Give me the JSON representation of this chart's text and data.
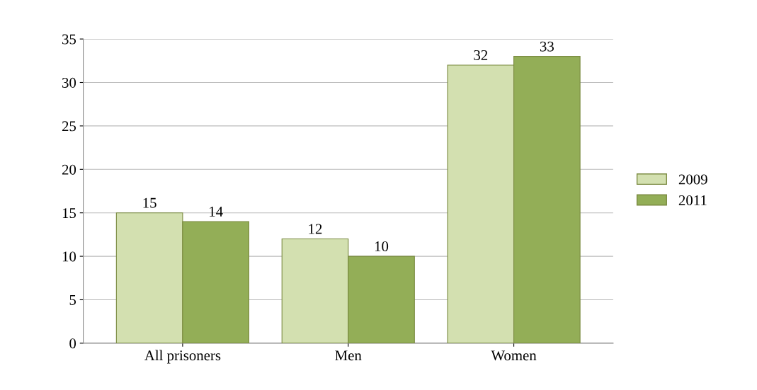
{
  "chart_data": {
    "type": "bar",
    "categories": [
      "All prisoners",
      "Men",
      "Women"
    ],
    "series": [
      {
        "name": "2009",
        "color": "#d3e0b0",
        "values": [
          15,
          12,
          32
        ]
      },
      {
        "name": "2011",
        "color": "#93ae57",
        "values": [
          14,
          10,
          33
        ]
      }
    ],
    "ylim": [
      0,
      35
    ],
    "yticks": [
      0,
      5,
      10,
      15,
      20,
      25,
      30,
      35
    ],
    "grid": "y",
    "legend": "right",
    "data_labels": true
  }
}
